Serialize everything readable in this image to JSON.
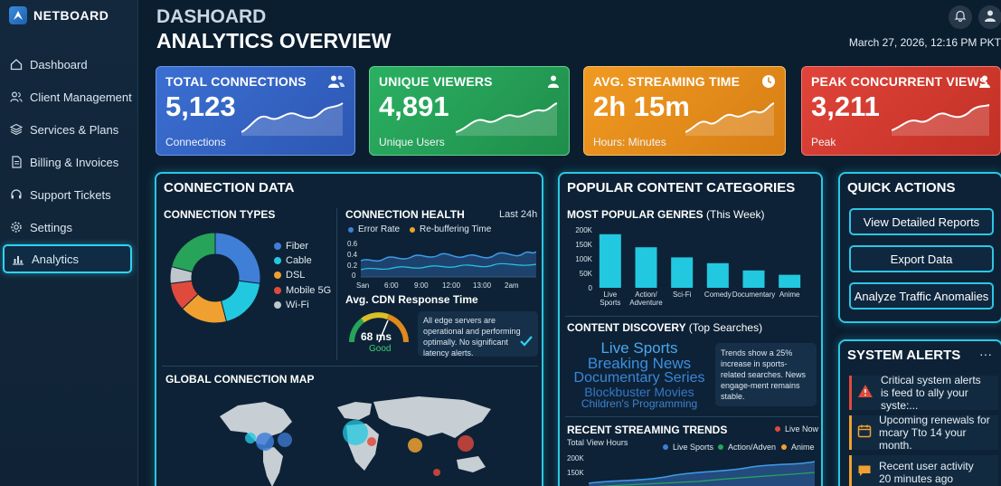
{
  "app": {
    "name": "NETBOARD"
  },
  "sidebar": {
    "items": [
      {
        "label": "Dashboard",
        "icon": "home-icon"
      },
      {
        "label": "Client Management",
        "icon": "users-icon"
      },
      {
        "label": "Services & Plans",
        "icon": "layers-icon"
      },
      {
        "label": "Billing & Invoices",
        "icon": "document-icon"
      },
      {
        "label": "Support Tickets",
        "icon": "headset-icon"
      },
      {
        "label": "Settings",
        "icon": "gear-icon"
      },
      {
        "label": "Analytics",
        "icon": "bar-chart-icon",
        "active": true
      }
    ]
  },
  "header": {
    "title_line1": "DASHOARD",
    "title_line2": "ANALYTICS OVERVIEW",
    "datetime": "March 27, 2026, 12:16 PM PKT"
  },
  "kpis": [
    {
      "label": "TOTAL CONNECTIONS",
      "value": "5,123",
      "sub": "Connections",
      "color": "#3567c9",
      "icon": "users-icon"
    },
    {
      "label": "UNIQUE VIEWERS",
      "value": "4,891",
      "sub": "Unique Users",
      "color": "#27a35a",
      "icon": "user-icon"
    },
    {
      "label": "AVG. STREAMING TIME",
      "value": "2h 15m",
      "sub": "Hours: Minutes",
      "color": "#e08a1c",
      "icon": "clock-icon"
    },
    {
      "label": "PEAK CONCURRENT VIEWS",
      "value": "3,211",
      "sub": "Peak",
      "color": "#d83b2f",
      "icon": "user-icon"
    }
  ],
  "connection_data": {
    "title": "CONNECTION DATA",
    "types_title": "CONNECTION TYPES",
    "types": [
      {
        "label": "Fiber",
        "color": "#3f7fd8",
        "share": 27
      },
      {
        "label": "Cable",
        "color": "#22c8e0",
        "share": 19
      },
      {
        "label": "DSL",
        "color": "#f0a030",
        "share": 17
      },
      {
        "label": "Mobile 5G",
        "color": "#e04a3c",
        "share": 10
      },
      {
        "label": "Wi-Fi",
        "color": "#bfc6cc",
        "share": 6
      },
      {
        "label": "",
        "color": "#27a35a",
        "share": 21
      }
    ],
    "health_title": "CONNECTION HEALTH",
    "health_period": "Last 24h",
    "health_legend": [
      {
        "label": "Error Rate",
        "color": "#3f7fd8"
      },
      {
        "label": "Re-buffering Time",
        "color": "#f0a030"
      }
    ],
    "health_yticks": [
      "0.6",
      "0.4",
      "0.2",
      "0"
    ],
    "health_xticks": [
      "San",
      "6:00",
      "9:00",
      "12:00",
      "13:00",
      "2am"
    ],
    "cdn_title": "Avg. CDN Response Time",
    "cdn_value": "68 ms",
    "cdn_status": "Good",
    "cdn_note": "All edge servers are operational and performing optimally. No significant latency alerts.",
    "map_title": "GLOBAL CONNECTION MAP"
  },
  "popular_content": {
    "title": "POPULAR CONTENT CATEGORIES",
    "genres_title": "MOST POPULAR GENRES",
    "genres_period": "(This Week)",
    "discovery_title": "CONTENT DISCOVERY",
    "discovery_period": "(Top Searches)",
    "searches": [
      "Live Sports",
      "Breaking News",
      "Documentary Series",
      "Blockbuster Movies",
      "Children's Programming"
    ],
    "trend_note": "Trends show a 25% increase in sports-related searches. News engage-ment remains stable.",
    "trends_title": "RECENT STREAMING TRENDS",
    "trends_live": "Live Now",
    "trends_ylabel": "Total View Hours",
    "trends_legend": [
      {
        "label": "Live Sports",
        "color": "#3f7fd8"
      },
      {
        "label": "Action/Adven",
        "color": "#27a35a"
      },
      {
        "label": "Anime",
        "color": "#f0a030"
      }
    ],
    "trends_yticks": [
      "200K",
      "150K"
    ]
  },
  "chart_data": [
    {
      "type": "bar",
      "title": "MOST POPULAR GENRES",
      "categories": [
        "Live Sports",
        "Action/ Adventure",
        "Sci-Fi",
        "Comedy",
        "Documentary",
        "Anime"
      ],
      "values": [
        185000,
        140000,
        105000,
        85000,
        60000,
        45000
      ],
      "ylim": [
        0,
        200000
      ],
      "yticks": [
        "200K",
        "150K",
        "100K",
        "50K",
        "0"
      ]
    }
  ],
  "quick_actions": {
    "title": "QUICK ACTIONS",
    "buttons": [
      "View Detailed Reports",
      "Export Data",
      "Analyze Traffic Anomalies"
    ]
  },
  "system_alerts": {
    "title": "SYSTEM ALERTS",
    "more": "···",
    "items": [
      {
        "text1": "Critical system alerts",
        "text2": "is feed to ally your syste:...",
        "color": "#e04a3c",
        "icon": "warning-icon"
      },
      {
        "text1": "Upcoming renewals for",
        "text2": "mcary Tto 14 your month.",
        "color": "#f0a030",
        "icon": "calendar-icon"
      },
      {
        "text1": "Recent user activity",
        "text2": "20 minutes ago",
        "color": "#f0a030",
        "icon": "chat-icon"
      }
    ]
  }
}
